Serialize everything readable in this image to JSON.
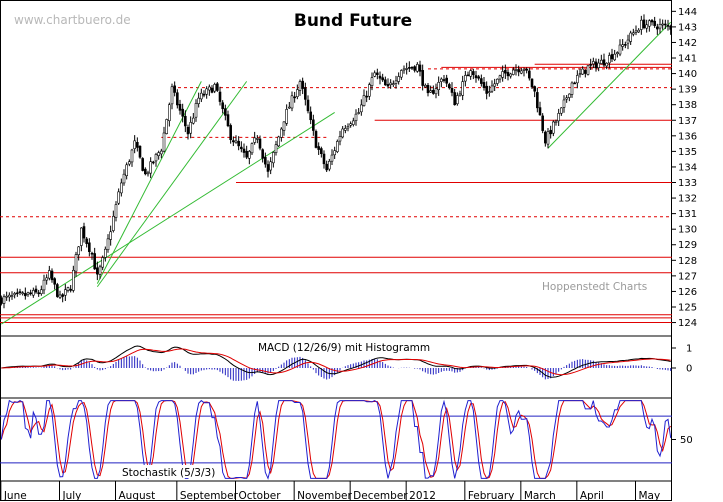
{
  "watermark": "www.chartbuero.de",
  "credit": "Hoppenstedt Charts",
  "colors": {
    "candle": "#000000",
    "support_line": "#e00000",
    "trend_line": "#33bb33",
    "macd_line": "#000000",
    "signal_line": "#e00000",
    "histogram": "#2020c0",
    "stoch_k": "#2020d0",
    "stoch_d": "#e00000",
    "stoch_band": "#2020c0"
  },
  "chart_data": [
    {
      "type": "candlestick",
      "title": "Bund Future",
      "y_ticks": [
        124,
        125,
        126,
        127,
        128,
        129,
        130,
        131,
        132,
        133,
        134,
        135,
        136,
        137,
        138,
        139,
        140,
        141,
        142,
        143,
        144
      ],
      "ylim": [
        123.2,
        144.6
      ],
      "x_months": [
        "June",
        "July",
        "August",
        "September",
        "October",
        "November",
        "December",
        "2012",
        "February",
        "March",
        "April",
        "May"
      ],
      "x_month_starts": [
        0,
        22,
        43,
        66,
        88,
        110,
        131,
        152,
        174,
        195,
        216,
        238
      ],
      "n_days": 252,
      "price_path": [
        [
          0,
          125.5
        ],
        [
          14,
          125.9
        ],
        [
          18,
          127.1
        ],
        [
          22,
          125.5
        ],
        [
          26,
          126.3
        ],
        [
          30,
          130.0
        ],
        [
          34,
          128.4
        ],
        [
          36,
          126.9
        ],
        [
          39,
          128.5
        ],
        [
          45,
          133.0
        ],
        [
          50,
          135.5
        ],
        [
          54,
          133.5
        ],
        [
          60,
          135.2
        ],
        [
          64,
          139.0
        ],
        [
          70,
          136.2
        ],
        [
          74,
          138.4
        ],
        [
          80,
          139.2
        ],
        [
          86,
          136.0
        ],
        [
          92,
          134.5
        ],
        [
          96,
          136.0
        ],
        [
          100,
          133.6
        ],
        [
          106,
          137.1
        ],
        [
          112,
          139.5
        ],
        [
          118,
          135.5
        ],
        [
          122,
          133.8
        ],
        [
          128,
          136.5
        ],
        [
          134,
          137.5
        ],
        [
          140,
          140.0
        ],
        [
          145,
          139.0
        ],
        [
          150,
          140.3
        ],
        [
          156,
          140.5
        ],
        [
          160,
          138.5
        ],
        [
          166,
          139.8
        ],
        [
          170,
          138.2
        ],
        [
          176,
          140.4
        ],
        [
          182,
          138.8
        ],
        [
          188,
          139.9
        ],
        [
          192,
          140.3
        ],
        [
          196,
          140.4
        ],
        [
          200,
          138.8
        ],
        [
          204,
          135.7
        ],
        [
          210,
          137.6
        ],
        [
          214,
          139.4
        ],
        [
          220,
          140.4
        ],
        [
          226,
          140.8
        ],
        [
          232,
          141.6
        ],
        [
          240,
          143.2
        ],
        [
          251,
          143.0
        ]
      ],
      "horizontal_levels": [
        {
          "y": 124.0,
          "style": "solid"
        },
        {
          "y": 124.3,
          "style": "solid"
        },
        {
          "y": 124.5,
          "style": "solid"
        },
        {
          "y": 127.2,
          "style": "solid"
        },
        {
          "y": 128.2,
          "style": "solid"
        },
        {
          "y": 130.8,
          "style": "dashed"
        },
        {
          "y": 133.0,
          "style": "solid",
          "from": 88
        },
        {
          "y": 135.9,
          "style": "dashed",
          "from": 60,
          "to": 122
        },
        {
          "y": 137.0,
          "style": "solid",
          "from": 140
        },
        {
          "y": 139.1,
          "style": "dashed",
          "from": 64
        },
        {
          "y": 140.3,
          "style": "dashed",
          "from": 160
        },
        {
          "y": 140.4,
          "style": "solid",
          "from": 165
        },
        {
          "y": 140.6,
          "style": "solid",
          "from": 200
        }
      ],
      "trend_lines": [
        {
          "from": [
            0,
            123.9
          ],
          "to": [
            125,
            137.5
          ]
        },
        {
          "from": [
            36,
            126.5
          ],
          "to": [
            75,
            139.5
          ]
        },
        {
          "from": [
            36,
            126.3
          ],
          "to": [
            92,
            139.5
          ]
        },
        {
          "from": [
            205,
            135.2
          ],
          "to": [
            251,
            143.3
          ]
        }
      ]
    },
    {
      "type": "line",
      "title": "MACD (12/26/9) mit Histogramm",
      "y_ticks": [
        1,
        0
      ],
      "ylim": [
        -1.45,
        1.55
      ]
    },
    {
      "type": "line",
      "title": "Stochastik (5/3/3)",
      "y_ticks": [
        50
      ],
      "ylim": [
        -2,
        102
      ],
      "bands": [
        80,
        20
      ]
    }
  ]
}
